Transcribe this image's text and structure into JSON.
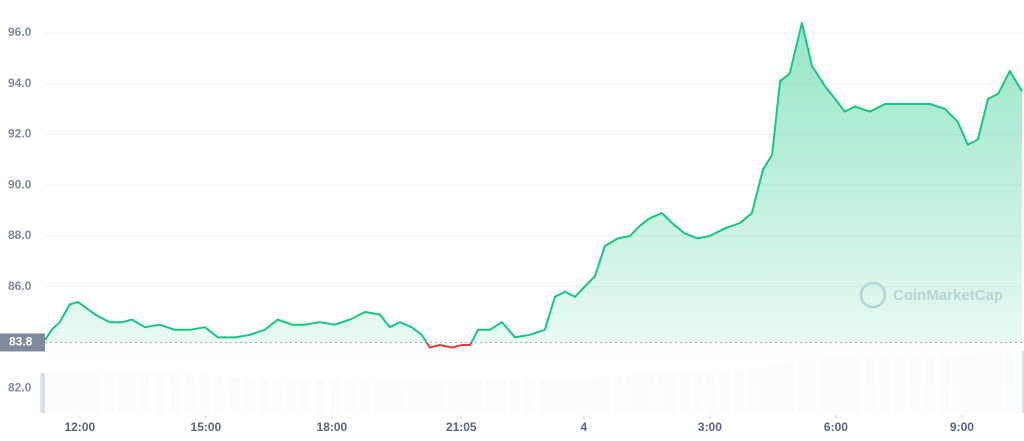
{
  "chart_data": {
    "type": "line",
    "x": [
      11.17,
      11.33,
      11.52,
      11.76,
      11.95,
      12.12,
      12.36,
      12.71,
      13.0,
      13.24,
      13.55,
      13.9,
      14.26,
      14.62,
      14.98,
      15.29,
      15.69,
      16.05,
      16.4,
      16.71,
      17.05,
      17.36,
      17.71,
      18.07,
      18.43,
      18.79,
      19.14,
      19.38,
      19.62,
      19.9,
      20.14,
      20.33,
      20.57,
      20.86,
      21.1,
      21.29,
      21.48,
      21.76,
      22.05,
      22.36,
      22.71,
      23.07,
      23.31,
      23.55,
      23.79,
      24.02,
      24.26,
      24.5,
      24.81,
      25.1,
      25.33,
      25.57,
      25.86,
      26.1,
      26.4,
      26.71,
      27.0,
      27.36,
      27.71,
      28.0,
      28.26,
      28.48,
      28.67,
      28.9,
      29.19,
      29.43,
      29.74,
      29.98,
      30.21,
      30.45,
      30.81,
      31.17,
      31.52,
      31.88,
      32.24,
      32.6,
      32.9,
      33.14,
      33.38,
      33.62,
      33.86,
      34.14,
      34.43
    ],
    "values": [
      83.9,
      84.3,
      84.6,
      85.3,
      85.4,
      85.2,
      84.9,
      84.6,
      84.6,
      84.7,
      84.4,
      84.5,
      84.3,
      84.3,
      84.4,
      84.0,
      84.0,
      84.1,
      84.3,
      84.7,
      84.5,
      84.5,
      84.6,
      84.5,
      84.7,
      85.0,
      84.9,
      84.4,
      84.6,
      84.4,
      84.1,
      83.6,
      83.7,
      83.6,
      83.7,
      83.7,
      84.3,
      84.3,
      84.6,
      84.0,
      84.1,
      84.3,
      85.6,
      85.8,
      85.6,
      86.0,
      86.4,
      87.6,
      87.9,
      88.0,
      88.4,
      88.7,
      88.9,
      88.5,
      88.1,
      87.9,
      88.0,
      88.3,
      88.5,
      88.9,
      90.6,
      91.2,
      94.1,
      94.4,
      96.4,
      94.7,
      93.9,
      93.4,
      92.9,
      93.1,
      92.9,
      93.2,
      93.2,
      93.2,
      93.2,
      93.0,
      92.5,
      91.6,
      91.8,
      93.4,
      93.6,
      94.5,
      93.7
    ],
    "volume": [
      40,
      40,
      40,
      40,
      40,
      40,
      40,
      40,
      40,
      40,
      40,
      40,
      40,
      40,
      40,
      37,
      35,
      34,
      34,
      33,
      33,
      33,
      33,
      33,
      33,
      33,
      33,
      33,
      33,
      33,
      33,
      33,
      33,
      33,
      33,
      33,
      33,
      33,
      33,
      33,
      33,
      33,
      33,
      33,
      33,
      34,
      35,
      36,
      37,
      38,
      39,
      39,
      40,
      40,
      40,
      41,
      41,
      42,
      43,
      44,
      45,
      47,
      49,
      51,
      53,
      54,
      55,
      56,
      56,
      56,
      56,
      57,
      57,
      57,
      57,
      58,
      58,
      59,
      59,
      60,
      60,
      61,
      62
    ],
    "baseline": {
      "value": 83.8,
      "label": "83.8"
    },
    "up_color": "#16c784",
    "down_color": "#ea3943",
    "watermark": "CoinMarketCap",
    "xlim": [
      11.17,
      34.43
    ],
    "ylim": [
      80.94,
      97.3
    ],
    "xticks": [
      {
        "value": 12,
        "label": "12:00"
      },
      {
        "value": 15,
        "label": "15:00"
      },
      {
        "value": 18,
        "label": "18:00"
      },
      {
        "value": 21.08,
        "label": "21:05"
      },
      {
        "value": 24,
        "label": "4"
      },
      {
        "value": 27,
        "label": "3:00"
      },
      {
        "value": 30,
        "label": "6:00"
      },
      {
        "value": 33,
        "label": "9:00"
      }
    ],
    "yticks": [
      {
        "value": 82,
        "label": "82.0"
      },
      {
        "value": 86,
        "label": "86.0"
      },
      {
        "value": 88,
        "label": "88.0"
      },
      {
        "value": 90,
        "label": "90.0"
      },
      {
        "value": 92,
        "label": "92.0"
      },
      {
        "value": 94,
        "label": "94.0"
      },
      {
        "value": 96,
        "label": "96.0"
      }
    ],
    "grid": true
  }
}
